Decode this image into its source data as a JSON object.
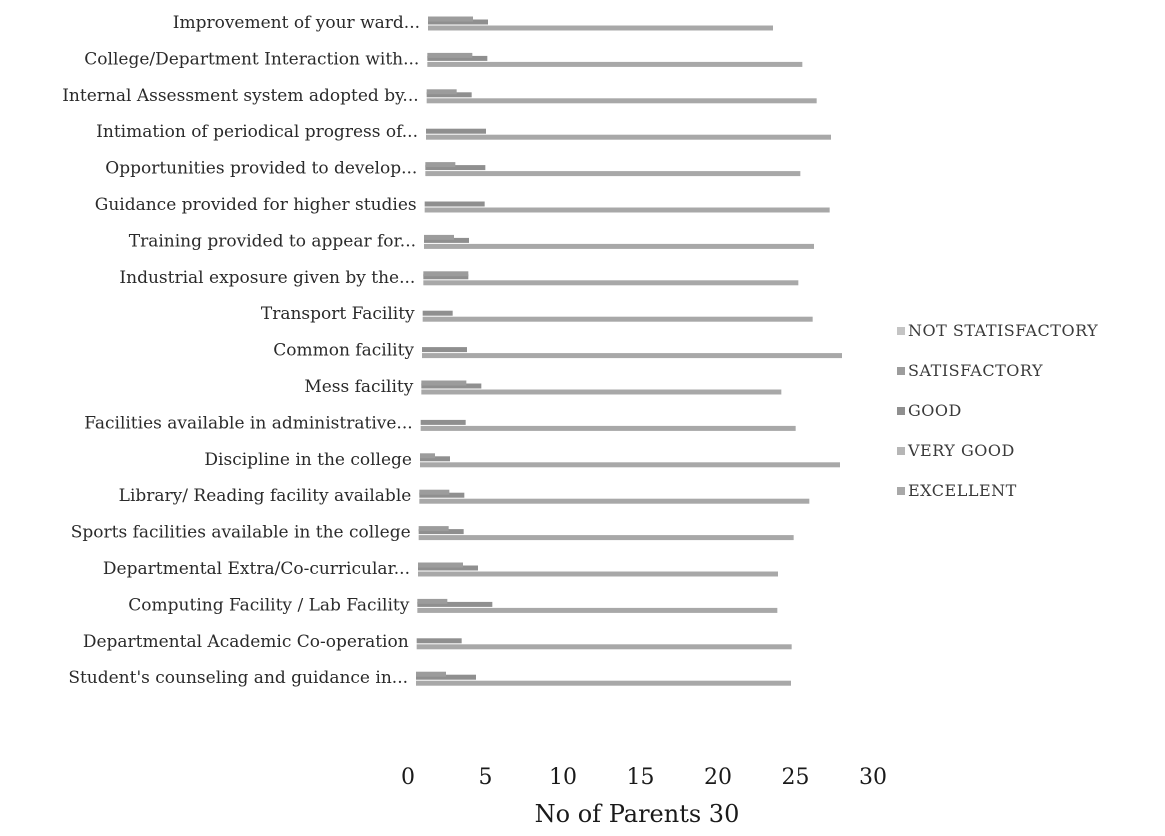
{
  "chart_data": {
    "type": "bar",
    "orientation": "horizontal",
    "categories": [
      "Improvement of your ward...",
      "College/Department Interaction with...",
      "Internal Assessment system adopted by...",
      "Intimation of periodical progress of...",
      "Opportunities provided to develop...",
      "Guidance provided for higher studies",
      "Training provided to appear for...",
      "Industrial exposure given by the...",
      "Transport Facility",
      "Common facility",
      "Mess facility",
      "Facilities available in administrative...",
      "Discipline in the college",
      "Library/ Reading facility available",
      "Sports facilities available in the college",
      "Departmental Extra/Co-curricular...",
      "Computing Facility / Lab Facility",
      "Departmental Academic Co-operation",
      "Student's counseling and guidance in..."
    ],
    "series": [
      {
        "name": "EXCELLENT",
        "color": "#a8a8a8",
        "values": [
          23,
          25,
          26,
          27,
          25,
          27,
          26,
          25,
          26,
          28,
          24,
          25,
          28,
          26,
          25,
          24,
          24,
          25,
          25
        ]
      },
      {
        "name": "VERY GOOD",
        "color": "#b6b6b6",
        "values": [
          0,
          0,
          0,
          0,
          0,
          0,
          0,
          0,
          0,
          0,
          0,
          0,
          0,
          0,
          0,
          0,
          0,
          0,
          0
        ]
      },
      {
        "name": "GOOD",
        "color": "#8f8f8f",
        "values": [
          4,
          4,
          3,
          4,
          4,
          4,
          3,
          3,
          2,
          3,
          4,
          3,
          2,
          3,
          3,
          4,
          5,
          3,
          4
        ]
      },
      {
        "name": "SATISFACTORY",
        "color": "#9c9c9c",
        "values": [
          3,
          3,
          2,
          0,
          2,
          0,
          2,
          3,
          0,
          0,
          3,
          0,
          1,
          2,
          2,
          3,
          2,
          0,
          2
        ]
      },
      {
        "name": "NOT STATISFACTORY",
        "color": "#c4c4c4",
        "values": [
          0,
          0,
          0,
          0,
          0,
          0,
          0,
          0,
          0,
          0,
          0,
          0,
          0,
          0,
          0,
          0,
          0,
          0,
          0
        ]
      }
    ],
    "legend_order": [
      "NOT STATISFACTORY",
      "SATISFACTORY",
      "GOOD",
      "VERY GOOD",
      "EXCELLENT"
    ],
    "x_ticks": [
      0,
      5,
      10,
      15,
      20,
      25,
      30
    ],
    "xlim": [
      0,
      30
    ],
    "xlabel": "No of  Parents   30",
    "title": "",
    "legend_position": "right",
    "grid": false
  }
}
